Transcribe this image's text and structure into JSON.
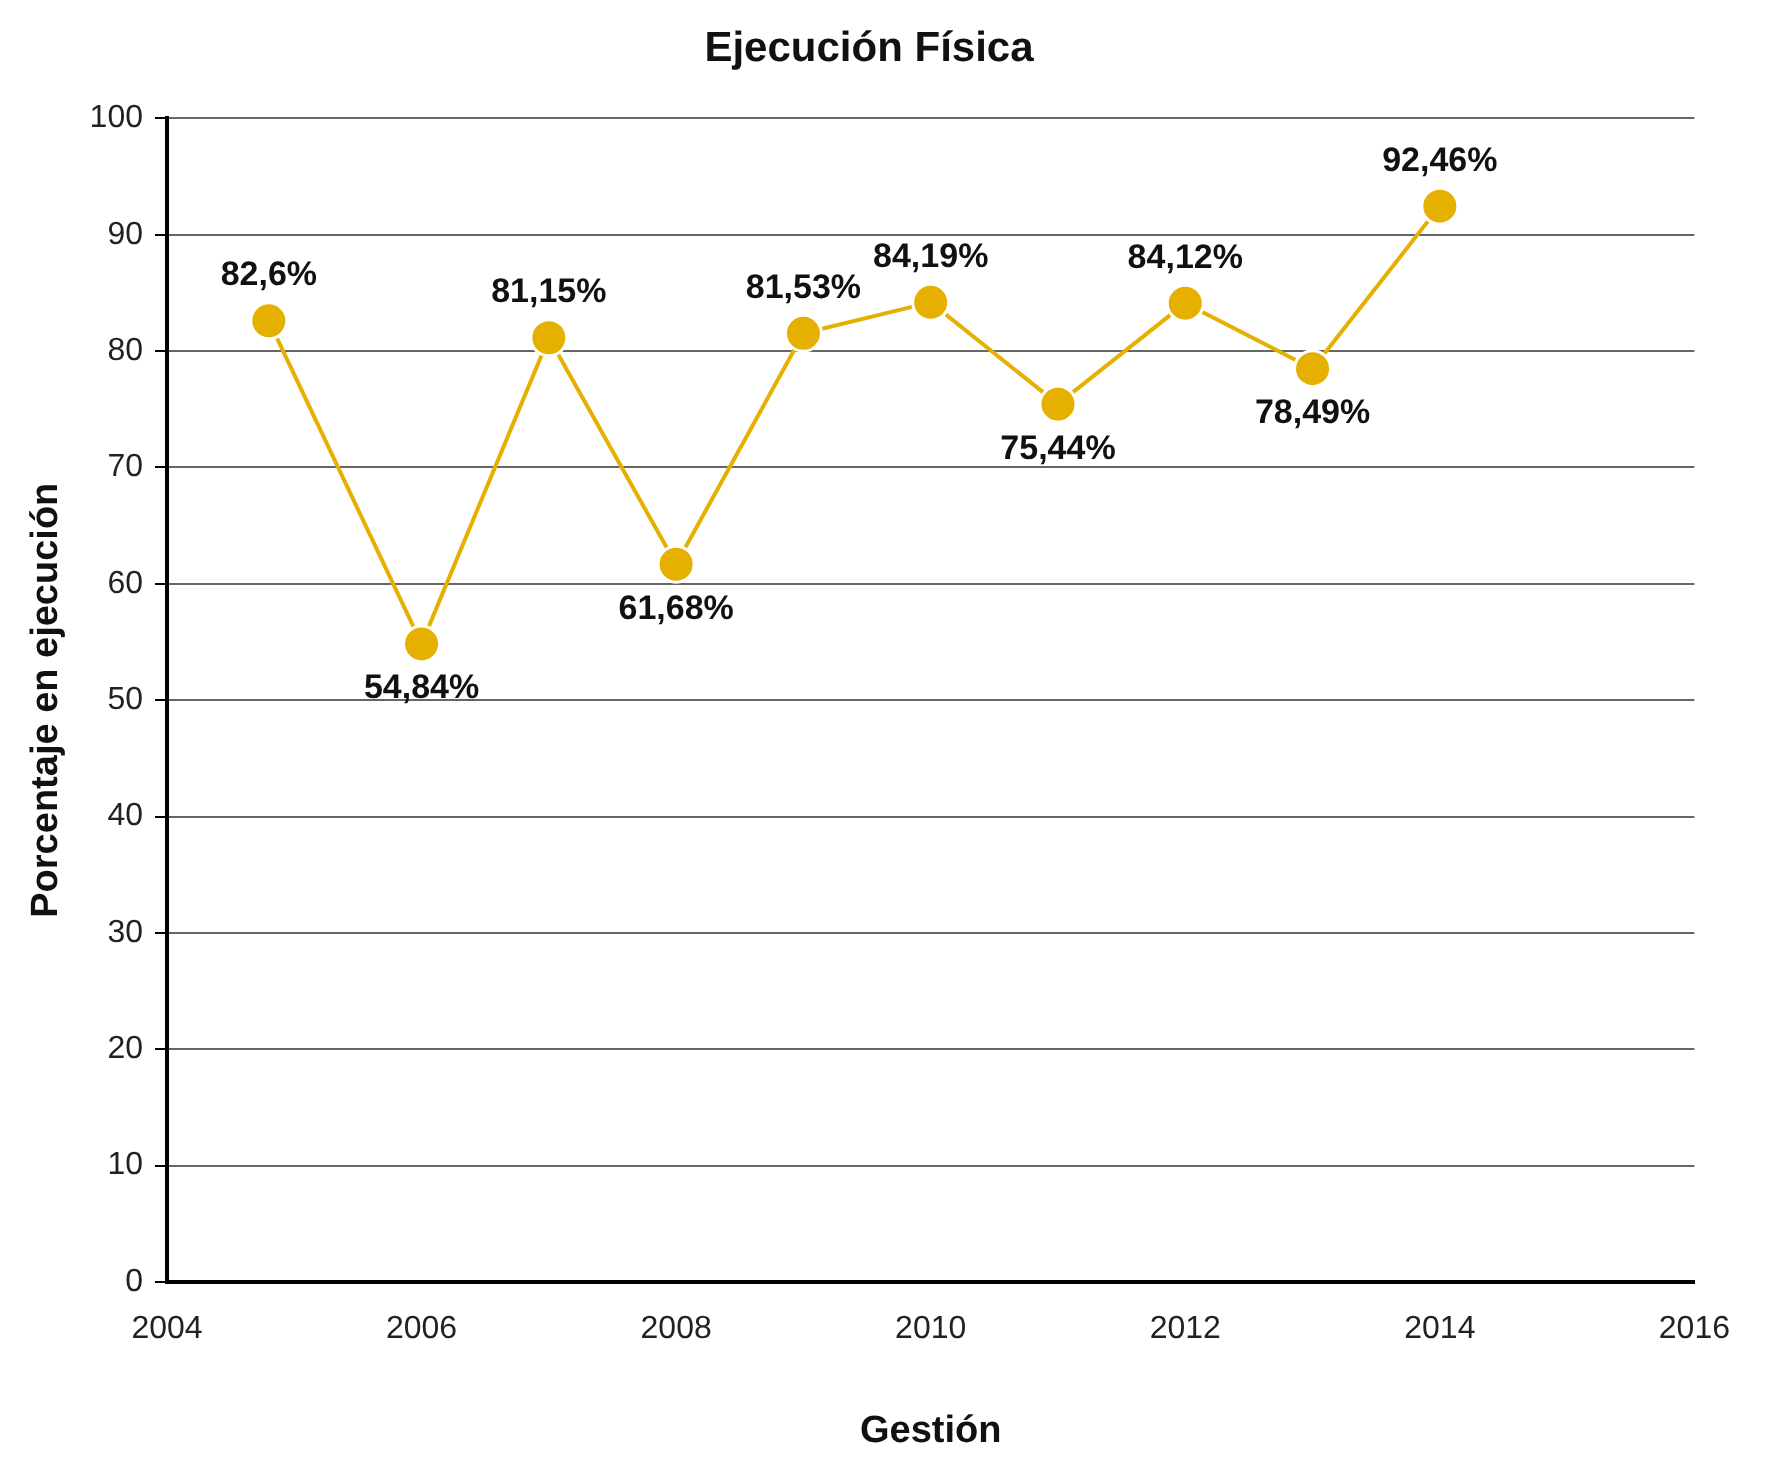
{
  "chart_data": {
    "type": "line",
    "title": "Ejecución Física",
    "xlabel": "Gestión",
    "ylabel": "Porcentaje en ejecución",
    "x": [
      2004.8,
      2006,
      2007,
      2008,
      2009,
      2010,
      2011,
      2012,
      2013,
      2014
    ],
    "series": [
      {
        "color": "#e6b000",
        "values": [
          82.6,
          54.84,
          81.15,
          61.68,
          81.53,
          84.19,
          75.44,
          84.12,
          78.49,
          92.46
        ],
        "value_labels": [
          "82,6%",
          "54,84%",
          "81,15%",
          "61,68%",
          "81,53%",
          "84,19%",
          "75,44%",
          "84,12%",
          "78,49%",
          "92,46%"
        ]
      }
    ],
    "xlim": [
      2004,
      2016
    ],
    "xticks": [
      2004,
      2006,
      2008,
      2010,
      2012,
      2014,
      2016
    ],
    "ylim": [
      0,
      100
    ],
    "yticks": [
      0,
      10,
      20,
      30,
      40,
      50,
      60,
      70,
      80,
      90,
      100
    ],
    "grid": "y",
    "legend": false,
    "marker": "circle",
    "line_style": "solid"
  }
}
